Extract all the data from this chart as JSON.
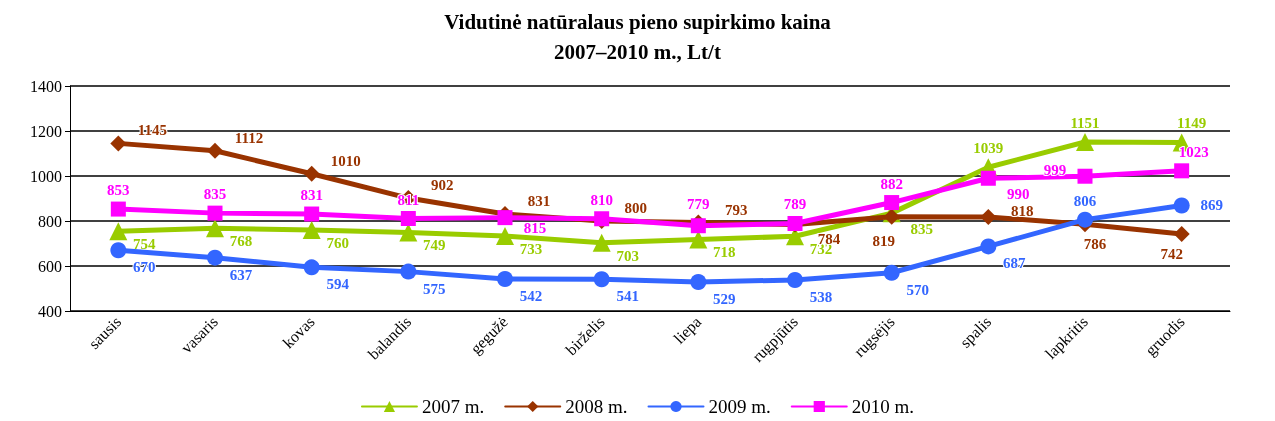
{
  "chart_data": {
    "type": "line",
    "title": "Vidutinė natūralaus pieno supirkimo kaina",
    "subtitle": "2007–2010 m., Lt/t",
    "categories": [
      "sausis",
      "vasaris",
      "kovas",
      "balandis",
      "gegužė",
      "birželis",
      "liepa",
      "rugpjūtis",
      "rugsėjis",
      "spalis",
      "lapkritis",
      "gruodis"
    ],
    "series": [
      {
        "name": "2007 m.",
        "color": "#99cc00",
        "marker": "triangle",
        "values": [
          754,
          768,
          760,
          749,
          733,
          703,
          718,
          732,
          835,
          1039,
          1151,
          1149
        ]
      },
      {
        "name": "2008 m.",
        "color": "#993300",
        "marker": "diamond",
        "values": [
          1145,
          1112,
          1010,
          902,
          831,
          800,
          793,
          784,
          819,
          818,
          786,
          742
        ]
      },
      {
        "name": "2009 m.",
        "color": "#3366ff",
        "marker": "circle",
        "values": [
          670,
          637,
          594,
          575,
          542,
          541,
          529,
          538,
          570,
          687,
          806,
          869
        ]
      },
      {
        "name": "2010 m.",
        "color": "#ff00ff",
        "marker": "square",
        "values": [
          853,
          835,
          831,
          811,
          815,
          810,
          779,
          789,
          882,
          990,
          999,
          1023
        ]
      }
    ],
    "ylim": [
      400,
      1400
    ],
    "yticks": [
      400,
      600,
      800,
      1000,
      1200,
      1400
    ],
    "grid": "y",
    "legend": "bottom",
    "data_labels": true,
    "line_style": "solid"
  }
}
